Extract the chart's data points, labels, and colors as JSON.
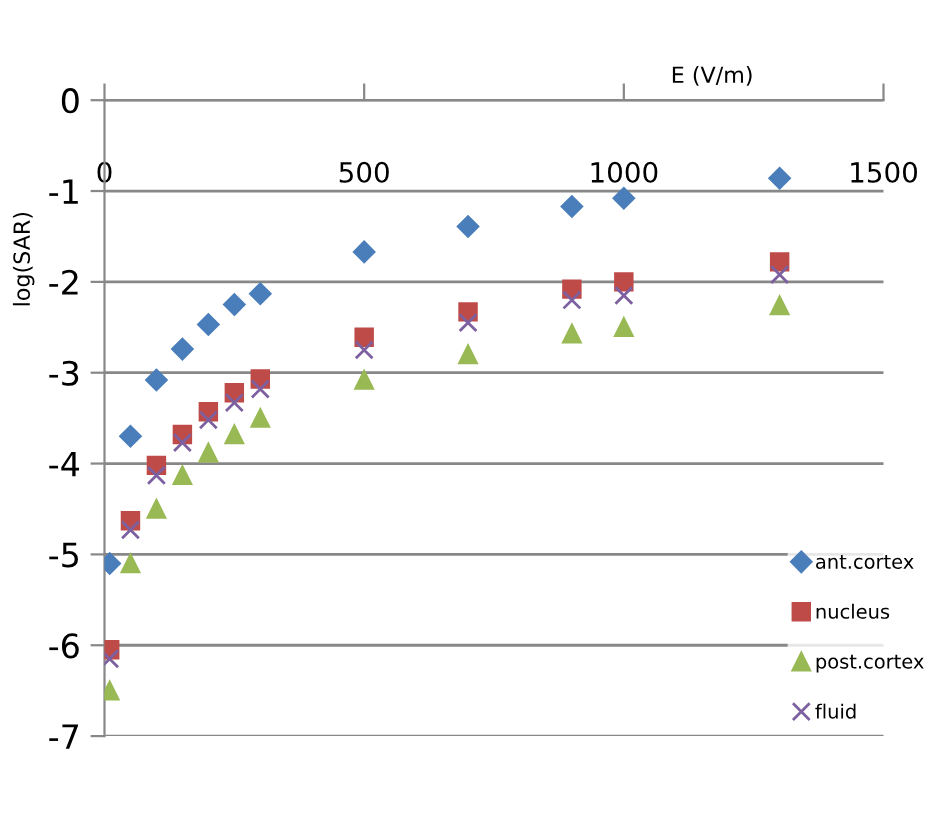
{
  "chart_data": {
    "type": "scatter",
    "xlabel": "E (V/m)",
    "ylabel": "log(SAR)",
    "x": [
      10,
      50,
      100,
      150,
      200,
      250,
      300,
      500,
      700,
      900,
      1000,
      1300
    ],
    "series": [
      {
        "name": "ant.cortex",
        "color": "#4a7ebb",
        "marker": "diamond",
        "values": [
          -5.1,
          -3.7,
          -3.08,
          -2.74,
          -2.47,
          -2.25,
          -2.13,
          -1.67,
          -1.39,
          -1.17,
          -1.08,
          -0.86
        ]
      },
      {
        "name": "nucleus",
        "color": "#be4b48",
        "marker": "square",
        "values": [
          -6.05,
          -4.63,
          -4.02,
          -3.68,
          -3.43,
          -3.22,
          -3.07,
          -2.61,
          -2.33,
          -2.08,
          -2.0,
          -1.78
        ]
      },
      {
        "name": "post.cortex",
        "color": "#98b954",
        "marker": "triangle",
        "values": [
          -6.5,
          -5.1,
          -4.5,
          -4.13,
          -3.88,
          -3.68,
          -3.5,
          -3.08,
          -2.8,
          -2.57,
          -2.5,
          -2.26
        ]
      },
      {
        "name": "fluid",
        "color": "#7d60a0",
        "marker": "cross",
        "values": [
          -6.15,
          -4.73,
          -4.13,
          -3.77,
          -3.52,
          -3.33,
          -3.18,
          -2.75,
          -2.45,
          -2.2,
          -2.15,
          -1.92
        ]
      }
    ],
    "xlim": [
      0,
      1500
    ],
    "xticks": [
      0,
      500,
      1000,
      1500
    ],
    "ylim": [
      -7,
      0
    ],
    "yticks": [
      0,
      -1,
      -2,
      -3,
      -4,
      -5,
      -6,
      -7
    ],
    "grid": "y",
    "legend": "bottom right"
  }
}
